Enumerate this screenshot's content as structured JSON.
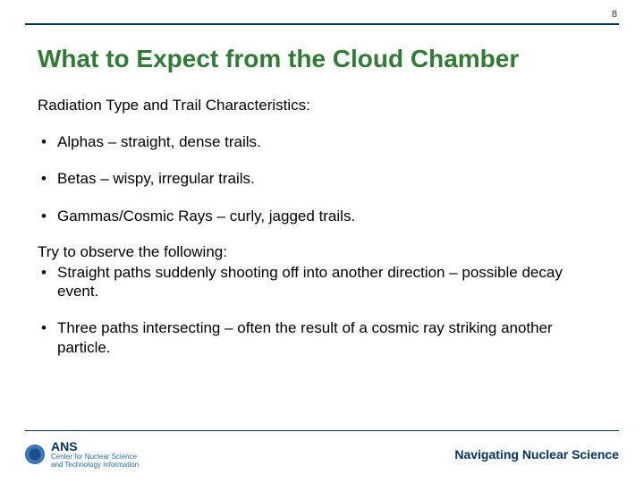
{
  "page_number": "8",
  "title": "What to Expect from the Cloud Chamber",
  "subtitle": "Radiation Type and Trail Characteristics:",
  "bullets": [
    "Alphas – straight, dense trails.",
    "Betas – wispy, irregular trails.",
    "Gammas/Cosmic Rays – curly, jagged trails."
  ],
  "observe_heading": "Try to observe the following:",
  "observe_bullets": [
    "Straight paths suddenly shooting off into another direction – possible decay event.",
    "Three paths intersecting – often the result of a cosmic ray striking another particle."
  ],
  "logo": {
    "name": "ANS",
    "sub1": "Center for Nuclear Science",
    "sub2": "and Technology Information"
  },
  "footer_tagline": "Navigating Nuclear Science",
  "colors": {
    "title_color": "#2e7d32",
    "rule_color": "#003366",
    "text_color": "#000000",
    "footer_text": "#003366",
    "logo_sub": "#1e6fa8"
  }
}
